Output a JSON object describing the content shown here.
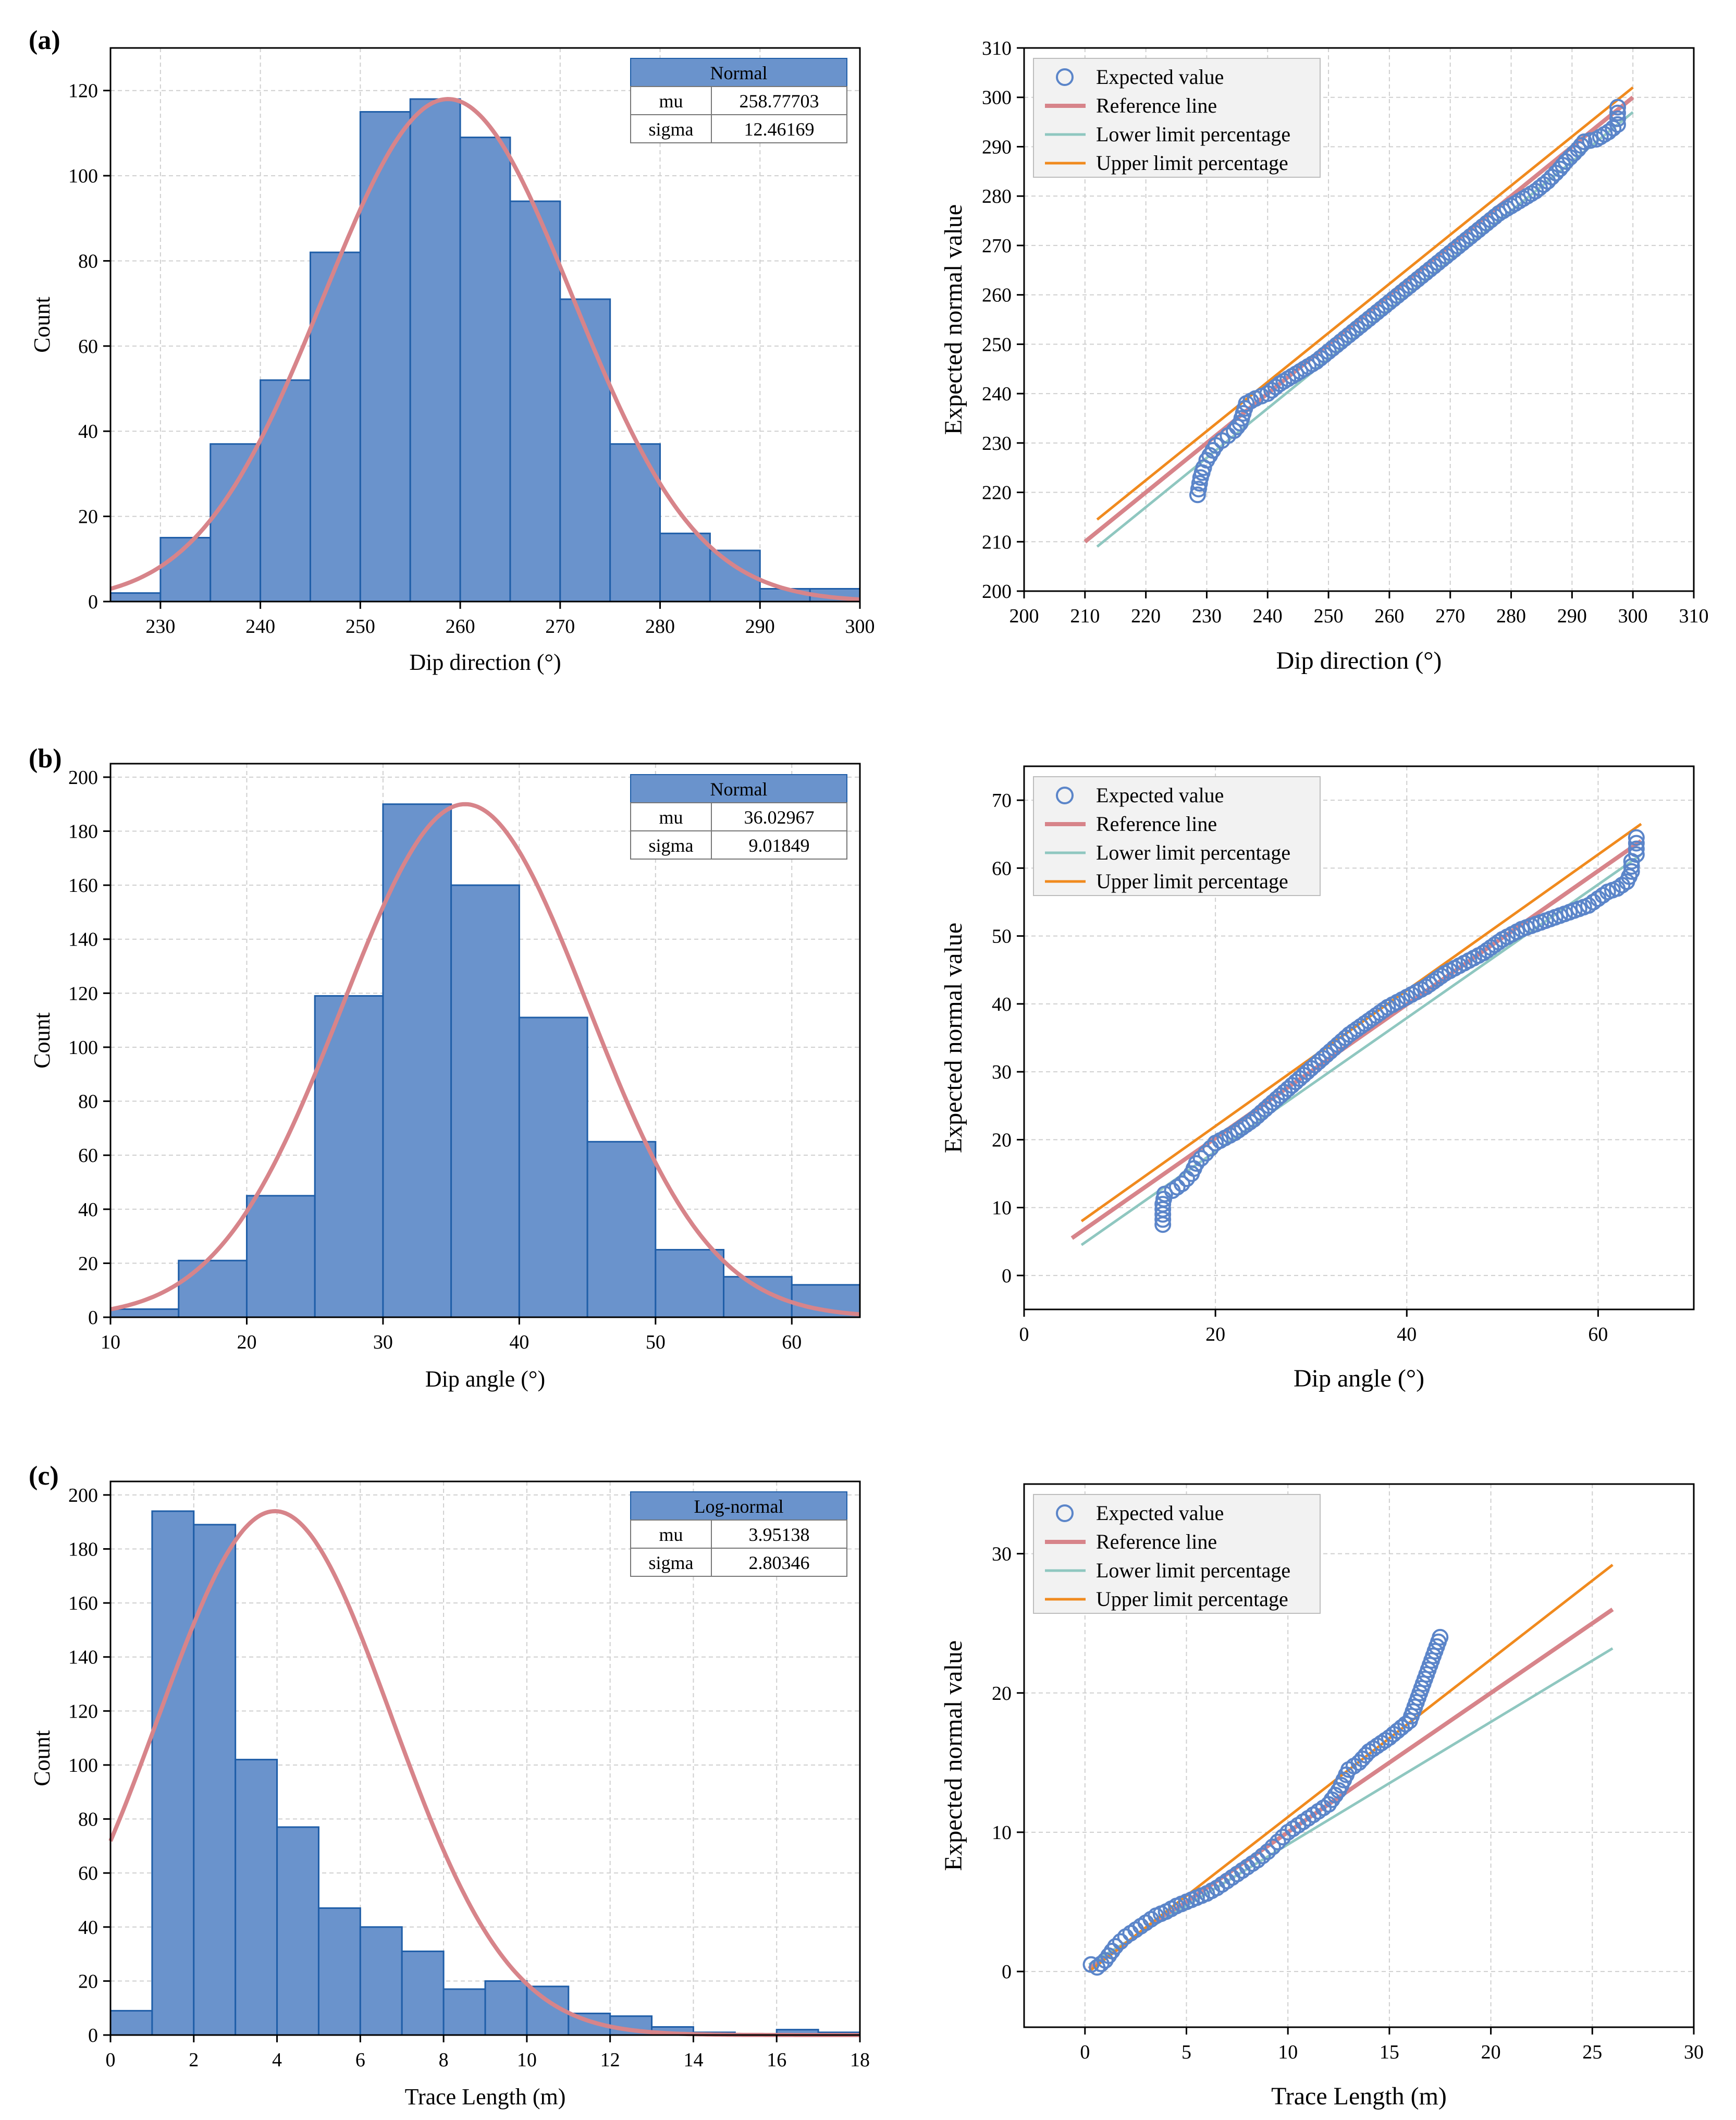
{
  "panels": [
    {
      "label": "(a)"
    },
    {
      "label": "(b)"
    },
    {
      "label": "(c)"
    }
  ],
  "chart_data": [
    {
      "type": "bar",
      "title": "",
      "xlabel": "Dip direction (°)",
      "ylabel": "Count",
      "xlim": [
        225,
        300
      ],
      "ylim": [
        0,
        130
      ],
      "xticks": [
        230,
        240,
        250,
        260,
        270,
        280,
        290,
        300
      ],
      "yticks": [
        0,
        20,
        40,
        60,
        80,
        100,
        120
      ],
      "bins": [
        [
          225,
          230
        ],
        [
          230,
          235
        ],
        [
          235,
          240
        ],
        [
          240,
          245
        ],
        [
          245,
          250
        ],
        [
          250,
          255
        ],
        [
          255,
          260
        ],
        [
          260,
          265
        ],
        [
          265,
          270
        ],
        [
          270,
          275
        ],
        [
          275,
          280
        ],
        [
          280,
          285
        ],
        [
          285,
          290
        ],
        [
          290,
          295
        ],
        [
          295,
          300
        ]
      ],
      "values": [
        2,
        15,
        37,
        52,
        82,
        115,
        118,
        109,
        94,
        71,
        37,
        16,
        12,
        3,
        3
      ],
      "fit": {
        "distribution": "Normal",
        "mu": 258.77703,
        "sigma": 12.46169,
        "peak": 118
      },
      "table": {
        "header": "Normal",
        "rows": [
          [
            "mu",
            "258.77703"
          ],
          [
            "sigma",
            "12.46169"
          ]
        ]
      }
    },
    {
      "type": "scatter",
      "title": "",
      "xlabel": "Dip direction (°)",
      "ylabel": "Expected normal value",
      "xlim": [
        200,
        310
      ],
      "ylim": [
        200,
        310
      ],
      "xticks": [
        200,
        210,
        220,
        230,
        240,
        250,
        260,
        270,
        280,
        290,
        300,
        310
      ],
      "yticks": [
        200,
        210,
        220,
        230,
        240,
        250,
        260,
        270,
        280,
        290,
        300,
        310
      ],
      "legend": [
        "Expected value",
        "Reference line",
        "Lower limit percentage",
        "Upper limit percentage"
      ],
      "series": [
        {
          "name": "Expected value",
          "points": [
            [
              228.5,
              219.5
            ],
            [
              229,
              223
            ],
            [
              229.5,
              225
            ],
            [
              230,
              226.5
            ],
            [
              230.5,
              227.5
            ],
            [
              231,
              228.5
            ],
            [
              231.5,
              229.5
            ],
            [
              232.5,
              230.5
            ],
            [
              233.5,
              231.5
            ],
            [
              234.5,
              232.5
            ],
            [
              235.5,
              234
            ],
            [
              236,
              236
            ],
            [
              236.5,
              238
            ],
            [
              238,
              239
            ],
            [
              240,
              240
            ],
            [
              242,
              242
            ],
            [
              244,
              243.5
            ],
            [
              246,
              245
            ],
            [
              248,
              246.5
            ],
            [
              250,
              248.5
            ],
            [
              252,
              250.5
            ],
            [
              254,
              252.5
            ],
            [
              256,
              254.5
            ],
            [
              258,
              256.5
            ],
            [
              260,
              258.5
            ],
            [
              262,
              260.5
            ],
            [
              264,
              262.5
            ],
            [
              266,
              264.5
            ],
            [
              268,
              266.5
            ],
            [
              270,
              268.5
            ],
            [
              272,
              270.5
            ],
            [
              274,
              272.5
            ],
            [
              276,
              274.5
            ],
            [
              278,
              276.5
            ],
            [
              280,
              278
            ],
            [
              282,
              279.5
            ],
            [
              284,
              281
            ],
            [
              286,
              283
            ],
            [
              288,
              285.5
            ],
            [
              289,
              287
            ],
            [
              291,
              289.5
            ],
            [
              292,
              291
            ],
            [
              294,
              291.5
            ],
            [
              296,
              293
            ],
            [
              297.5,
              294.5
            ],
            [
              297.5,
              298
            ]
          ]
        },
        {
          "name": "Reference line",
          "line": [
            [
              210,
              210
            ],
            [
              300,
              300
            ]
          ]
        },
        {
          "name": "Lower limit percentage",
          "line": [
            [
              212,
              209
            ],
            [
              300,
              297
            ]
          ]
        },
        {
          "name": "Upper limit percentage",
          "line": [
            [
              212,
              214.5
            ],
            [
              300,
              302
            ]
          ]
        }
      ]
    },
    {
      "type": "bar",
      "title": "",
      "xlabel": "Dip angle (°)",
      "ylabel": "Count",
      "xlim": [
        10,
        65
      ],
      "ylim": [
        0,
        205
      ],
      "xticks": [
        10,
        20,
        30,
        40,
        50,
        60
      ],
      "yticks": [
        0,
        20,
        40,
        60,
        80,
        100,
        120,
        140,
        160,
        180,
        200
      ],
      "bins": [
        [
          10,
          15
        ],
        [
          15,
          20
        ],
        [
          20,
          25
        ],
        [
          25,
          30
        ],
        [
          30,
          35
        ],
        [
          35,
          40
        ],
        [
          40,
          45
        ],
        [
          45,
          50
        ],
        [
          50,
          55
        ],
        [
          55,
          60
        ],
        [
          60,
          65
        ]
      ],
      "values": [
        3,
        21,
        45,
        119,
        190,
        160,
        111,
        65,
        25,
        15,
        12
      ],
      "fit": {
        "distribution": "Normal",
        "mu": 36.02967,
        "sigma": 9.01849,
        "peak": 190
      },
      "table": {
        "header": "Normal",
        "rows": [
          [
            "mu",
            "36.02967"
          ],
          [
            "sigma",
            "9.01849"
          ]
        ]
      }
    },
    {
      "type": "scatter",
      "title": "",
      "xlabel": "Dip angle (°)",
      "ylabel": "Expected normal value",
      "xlim": [
        0,
        70
      ],
      "ylim": [
        -5,
        75
      ],
      "xticks": [
        0,
        20,
        40,
        60
      ],
      "yticks": [
        0,
        10,
        20,
        30,
        40,
        50,
        60,
        70
      ],
      "legend": [
        "Expected value",
        "Reference line",
        "Lower limit percentage",
        "Upper limit percentage"
      ],
      "series": [
        {
          "name": "Expected value",
          "points": [
            [
              14.5,
              7.5
            ],
            [
              14.5,
              10.5
            ],
            [
              14.7,
              12
            ],
            [
              15.5,
              12.5
            ],
            [
              16.5,
              13.5
            ],
            [
              17.5,
              15
            ],
            [
              18,
              16.5
            ],
            [
              19,
              18
            ],
            [
              20,
              19.5
            ],
            [
              22,
              21
            ],
            [
              24,
              23
            ],
            [
              26,
              25.5
            ],
            [
              28,
              28
            ],
            [
              30,
              30.5
            ],
            [
              32,
              33
            ],
            [
              34,
              35.5
            ],
            [
              36,
              37.5
            ],
            [
              38,
              39.5
            ],
            [
              40,
              41
            ],
            [
              42,
              42.5
            ],
            [
              44,
              44.5
            ],
            [
              46,
              46
            ],
            [
              48,
              47.5
            ],
            [
              50,
              49.5
            ],
            [
              52,
              51
            ],
            [
              54,
              52
            ],
            [
              56,
              53
            ],
            [
              58,
              54
            ],
            [
              59,
              54.5
            ],
            [
              60,
              55.5
            ],
            [
              61,
              56.5
            ],
            [
              62,
              57
            ],
            [
              63,
              58
            ],
            [
              63.5,
              59.5
            ],
            [
              63.5,
              61
            ],
            [
              64,
              62
            ],
            [
              64,
              64.5
            ]
          ]
        },
        {
          "name": "Reference line",
          "line": [
            [
              5,
              5.5
            ],
            [
              64.5,
              64
            ]
          ]
        },
        {
          "name": "Lower limit percentage",
          "line": [
            [
              6,
              4.5
            ],
            [
              64.5,
              62
            ]
          ]
        },
        {
          "name": "Upper limit percentage",
          "line": [
            [
              6,
              8
            ],
            [
              64.5,
              66.5
            ]
          ]
        }
      ]
    },
    {
      "type": "bar",
      "title": "",
      "xlabel": "Trace Length (m)",
      "ylabel": "Count",
      "xlim": [
        0,
        18
      ],
      "ylim": [
        0,
        205
      ],
      "xticks": [
        0,
        2,
        4,
        6,
        8,
        10,
        12,
        14,
        16,
        18
      ],
      "yticks": [
        0,
        20,
        40,
        60,
        80,
        100,
        120,
        140,
        160,
        180,
        200
      ],
      "bins": [
        [
          0,
          1
        ],
        [
          1,
          2
        ],
        [
          2,
          3
        ],
        [
          3,
          4
        ],
        [
          4,
          5
        ],
        [
          5,
          6
        ],
        [
          6,
          7
        ],
        [
          7,
          8
        ],
        [
          8,
          9
        ],
        [
          9,
          10
        ],
        [
          10,
          11
        ],
        [
          11,
          12
        ],
        [
          12,
          13
        ],
        [
          13,
          14
        ],
        [
          14,
          15
        ],
        [
          15,
          16
        ],
        [
          16,
          17
        ],
        [
          17,
          18
        ]
      ],
      "values": [
        9,
        194,
        189,
        102,
        77,
        47,
        40,
        31,
        17,
        20,
        18,
        8,
        7,
        3,
        1,
        0,
        2,
        1
      ],
      "fit": {
        "distribution": "Log-normal",
        "mu": 3.95138,
        "sigma": 2.80346,
        "peak": 194
      },
      "table": {
        "header": "Log-normal",
        "rows": [
          [
            "mu",
            "3.95138"
          ],
          [
            "sigma",
            "2.80346"
          ]
        ]
      }
    },
    {
      "type": "scatter",
      "title": "",
      "xlabel": "Trace Length (m)",
      "ylabel": "Expected normal value",
      "xlim": [
        -3,
        30
      ],
      "ylim": [
        -4,
        35
      ],
      "xticks": [
        0,
        5,
        10,
        15,
        20,
        25,
        30
      ],
      "yticks": [
        0,
        10,
        20,
        30
      ],
      "legend": [
        "Expected value",
        "Reference line",
        "Lower limit percentage",
        "Upper limit percentage"
      ],
      "series": [
        {
          "name": "Expected value",
          "points": [
            [
              0.3,
              0.5
            ],
            [
              0.6,
              0.3
            ],
            [
              1,
              0.8
            ],
            [
              1.5,
              1.8
            ],
            [
              2,
              2.5
            ],
            [
              2.5,
              3
            ],
            [
              3,
              3.5
            ],
            [
              3.5,
              4
            ],
            [
              4,
              4.3
            ],
            [
              4.5,
              4.7
            ],
            [
              5,
              5
            ],
            [
              5.5,
              5.3
            ],
            [
              6,
              5.6
            ],
            [
              6.5,
              6
            ],
            [
              7,
              6.5
            ],
            [
              7.5,
              7
            ],
            [
              8,
              7.5
            ],
            [
              8.5,
              8
            ],
            [
              9,
              8.6
            ],
            [
              9.5,
              9.3
            ],
            [
              10,
              10
            ],
            [
              10.5,
              10.5
            ],
            [
              11,
              11
            ],
            [
              11.5,
              11.5
            ],
            [
              12,
              12
            ],
            [
              12.5,
              13
            ],
            [
              13,
              14.5
            ],
            [
              13.5,
              15
            ],
            [
              14,
              15.8
            ],
            [
              15,
              16.8
            ],
            [
              16,
              18
            ],
            [
              16.5,
              20
            ],
            [
              17.5,
              24
            ]
          ]
        },
        {
          "name": "Reference line",
          "line": [
            [
              0.2,
              0.2
            ],
            [
              26,
              26
            ]
          ]
        },
        {
          "name": "Lower limit percentage",
          "line": [
            [
              0.2,
              0.5
            ],
            [
              26,
              23.2
            ]
          ]
        },
        {
          "name": "Upper limit percentage",
          "line": [
            [
              0.2,
              0
            ],
            [
              26,
              29.2
            ]
          ]
        }
      ]
    }
  ],
  "colors": {
    "bar": "#6a93cc",
    "bar_edge": "#1f5ea8",
    "fit_curve": "#d7848a",
    "marker": "#5b85c9",
    "reference": "#d7848a",
    "lower": "#8fc7c0",
    "upper": "#f08a1e"
  }
}
